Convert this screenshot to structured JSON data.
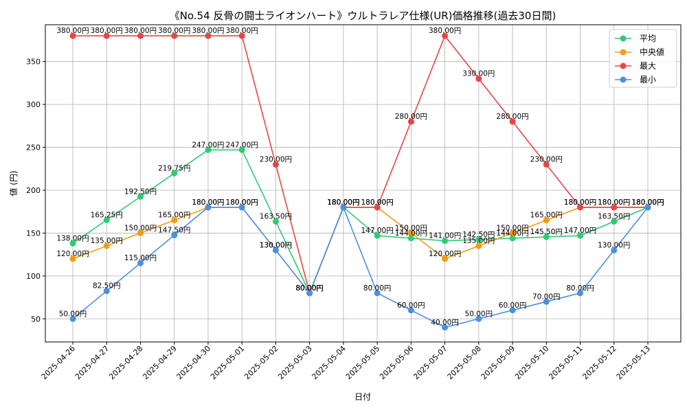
{
  "chart_data": {
    "type": "line",
    "title": "《No.54 反骨の闘士ライオンハート》ウルトラレア仕様(UR)価格推移(過去30日間)",
    "xlabel": "日付",
    "ylabel": "値 (円)",
    "ylim": [
      23,
      393
    ],
    "yticks": [
      50,
      100,
      150,
      200,
      250,
      300,
      350
    ],
    "grid": true,
    "legend_position": "top-right",
    "categories": [
      "2025-04-26",
      "2025-04-27",
      "2025-04-28",
      "2025-04-29",
      "2025-04-30",
      "2025-05-01",
      "2025-05-02",
      "2025-05-03",
      "2025-05-04",
      "2025-05-05",
      "2025-05-06",
      "2025-05-07",
      "2025-05-08",
      "2025-05-09",
      "2025-05-10",
      "2025-05-11",
      "2025-05-12",
      "2025-05-13"
    ],
    "series": [
      {
        "name": "平均",
        "color": "#2ecc71",
        "values": [
          138.0,
          165.25,
          192.5,
          219.75,
          247.0,
          247.0,
          163.5,
          80.0,
          180.0,
          147.0,
          144.0,
          141.0,
          142.5,
          144.0,
          145.5,
          147.0,
          163.5,
          180.0
        ],
        "labels": [
          "138.00円",
          "165.25円",
          "192.50円",
          "219.75円",
          "247.00円",
          "247.00円",
          "163.50円",
          "80.00円",
          "180.00円",
          "147.00円",
          "144.00円",
          "141.00円",
          "142.50円",
          "144.00円",
          "145.50円",
          "147.00円",
          "163.50円",
          "180.00円"
        ]
      },
      {
        "name": "中央値",
        "color": "#f39c12",
        "values": [
          120.0,
          135.0,
          150.0,
          165.0,
          180.0,
          180.0,
          130.0,
          80.0,
          180.0,
          180.0,
          150.0,
          120.0,
          135.0,
          150.0,
          165.0,
          180.0,
          180.0,
          180.0
        ],
        "labels": [
          "120.00円",
          "135.00円",
          "150.00円",
          "165.00円",
          "180.00円",
          "180.00円",
          "130.00円",
          "80.00円",
          "180.00円",
          "180.00円",
          "150.00円",
          "120.00円",
          "135.00円",
          "150.00円",
          "165.00円",
          "180.00円",
          "180.00円",
          "180.00円"
        ]
      },
      {
        "name": "最大",
        "color": "#e84545",
        "values": [
          380.0,
          380.0,
          380.0,
          380.0,
          380.0,
          380.0,
          230.0,
          80.0,
          180.0,
          180.0,
          280.0,
          380.0,
          330.0,
          280.0,
          230.0,
          180.0,
          180.0,
          180.0
        ],
        "labels": [
          "380.00円",
          "380.00円",
          "380.00円",
          "380.00円",
          "380.00円",
          "380.00円",
          "230.00円",
          "80.00円",
          "180.00円",
          "180.00円",
          "280.00円",
          "380.00円",
          "330.00円",
          "280.00円",
          "230.00円",
          "180.00円",
          "180.00円",
          "180.00円"
        ]
      },
      {
        "name": "最小",
        "color": "#4a90e2",
        "values": [
          50.0,
          82.5,
          115.0,
          147.5,
          180.0,
          180.0,
          130.0,
          80.0,
          180.0,
          80.0,
          60.0,
          40.0,
          50.0,
          60.0,
          70.0,
          80.0,
          130.0,
          180.0
        ],
        "labels": [
          "50.00円",
          "82.50円",
          "115.00円",
          "147.50円",
          "180.00円",
          "180.00円",
          "130.00円",
          "80.00円",
          "180.00円",
          "80.00円",
          "60.00円",
          "40.00円",
          "50.00円",
          "60.00円",
          "70.00円",
          "80.00円",
          "130.00円",
          "180.00円"
        ]
      }
    ]
  }
}
